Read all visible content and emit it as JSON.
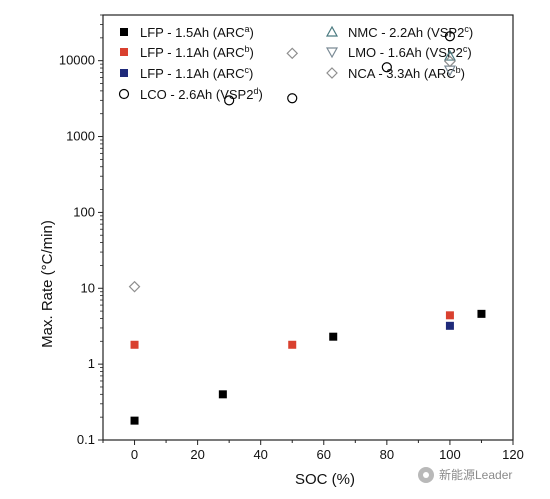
{
  "chart_data": {
    "type": "scatter",
    "xlabel": "SOC (%)",
    "ylabel": "Max. Rate (°C/min)",
    "xlim": [
      -10,
      120
    ],
    "ylim": [
      0.1,
      40000
    ],
    "yscale": "log",
    "xticks": [
      "0",
      "20",
      "40",
      "60",
      "80",
      "100",
      "120"
    ],
    "yticks": [
      "0.1",
      "1",
      "10",
      "100",
      "1000",
      "10000"
    ],
    "ytick_values": [
      0.1,
      1,
      10,
      100,
      1000,
      10000
    ],
    "legend_position": "top",
    "series": [
      {
        "name": "LFP - 1.5Ah (ARC",
        "sup": "a",
        "suffix": ")",
        "marker": "square-filled",
        "color": "#000000",
        "x": [
          0,
          28,
          63,
          110
        ],
        "y": [
          0.18,
          0.4,
          2.3,
          4.6
        ]
      },
      {
        "name": "LFP - 1.1Ah (ARC",
        "sup": "b",
        "suffix": ")",
        "marker": "square-filled",
        "color": "#d9402f",
        "x": [
          0,
          50,
          100
        ],
        "y": [
          1.8,
          1.8,
          4.4
        ]
      },
      {
        "name": "LFP - 1.1Ah (ARC",
        "sup": "c",
        "suffix": ")",
        "marker": "square-filled",
        "color": "#1f2a7a",
        "x": [
          100
        ],
        "y": [
          3.2
        ]
      },
      {
        "name": "LCO - 2.6Ah (VSP2",
        "sup": "d",
        "suffix": ")",
        "marker": "circle-open",
        "color": "#000000",
        "x": [
          30,
          50,
          80,
          100
        ],
        "y": [
          3000,
          3200,
          8200,
          21000
        ]
      },
      {
        "name": "NMC - 2.2Ah (VSP2",
        "sup": "c",
        "suffix": ")",
        "marker": "triangle-up-open",
        "color": "#4a7a80",
        "x": [
          100
        ],
        "y": [
          11500
        ]
      },
      {
        "name": "LMO - 1.6Ah (VSP2",
        "sup": "c",
        "suffix": ")",
        "marker": "triangle-down-open",
        "color": "#7a8a95",
        "x": [
          100
        ],
        "y": [
          7500
        ]
      },
      {
        "name": "NCA - 3.3Ah (ARC",
        "sup": "b",
        "suffix": ")",
        "marker": "diamond-open",
        "color": "#8f8f8f",
        "x": [
          0,
          50,
          100
        ],
        "y": [
          10.5,
          12500,
          9800
        ]
      }
    ]
  },
  "watermark": {
    "text": "新能源Leader"
  }
}
